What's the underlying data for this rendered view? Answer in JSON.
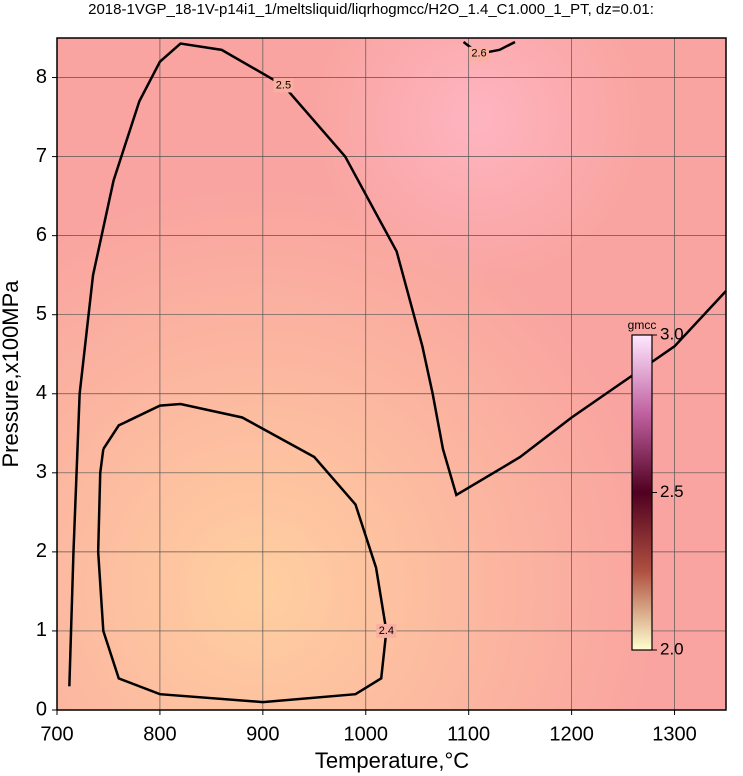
{
  "chart_data": {
    "type": "contour",
    "title": "2018-1VGP_18-1V-p14i1_1/meltsliquid/liqrhogmcc/H2O_1.4_C1.000_1_PT, dz=0.01:",
    "xlabel": "Temperature,°C",
    "ylabel": "Pressure,x100MPa",
    "xlim": [
      700,
      1350
    ],
    "ylim": [
      0,
      8.5
    ],
    "xticks": [
      700,
      800,
      900,
      1000,
      1100,
      1200,
      1300
    ],
    "yticks": [
      0,
      1,
      2,
      3,
      4,
      5,
      6,
      7,
      8
    ],
    "grid": true,
    "series": [
      {
        "name": "2.5",
        "color": "#000000",
        "x": [
          712,
          716,
          722,
          735,
          755,
          780,
          800,
          820,
          860,
          920,
          980,
          1030,
          1055,
          1065,
          1075,
          1088,
          1150,
          1200,
          1250,
          1300,
          1350
        ],
        "values": [
          0.3,
          2.0,
          4.0,
          5.5,
          6.7,
          7.7,
          8.2,
          8.43,
          8.35,
          7.9,
          7.0,
          5.8,
          4.6,
          4.0,
          3.3,
          2.72,
          3.2,
          3.7,
          4.15,
          4.6,
          5.3
        ]
      },
      {
        "name": "2.4",
        "color": "#000000",
        "x": [
          745,
          760,
          800,
          820,
          880,
          950,
          990,
          1010,
          1020,
          1015,
          990,
          900,
          800,
          760,
          745,
          740,
          742,
          745
        ],
        "values": [
          3.3,
          3.6,
          3.85,
          3.87,
          3.7,
          3.2,
          2.6,
          1.8,
          1.0,
          0.4,
          0.2,
          0.1,
          0.2,
          0.4,
          1.0,
          2.0,
          3.0,
          3.3
        ]
      },
      {
        "name": "2.6",
        "color": "#000000",
        "x": [
          1095,
          1110,
          1130,
          1145
        ],
        "values": [
          8.45,
          8.3,
          8.35,
          8.45
        ]
      }
    ],
    "colorbar": {
      "label": "gmcc",
      "lim": [
        2,
        3
      ],
      "ticks": [
        {
          "value": 2,
          "label": "2.0"
        },
        2.5,
        {
          "value": 3,
          "label": "3.0"
        }
      ],
      "colors": [
        "#ffffd0",
        "#b05040",
        "#500020",
        "#c060a0",
        "#ffe8ff"
      ]
    }
  }
}
